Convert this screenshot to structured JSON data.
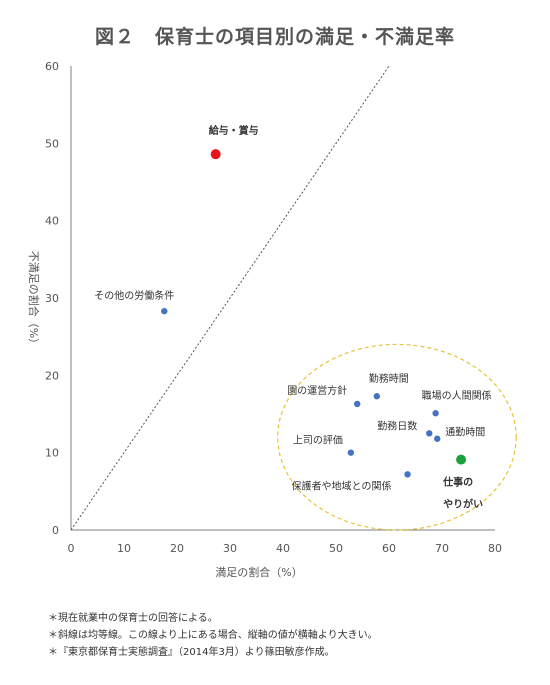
{
  "title": "図２　保育士の項目別の満足・不満足率",
  "chart_data": {
    "type": "scatter",
    "xlabel": "満足の割合（%）",
    "ylabel": "不満足の割合（%）",
    "xlim": [
      0,
      80
    ],
    "ylim": [
      0,
      60
    ],
    "x_ticks": [
      0,
      10,
      20,
      30,
      40,
      50,
      60,
      70,
      80
    ],
    "y_ticks": [
      0,
      10,
      20,
      30,
      40,
      50,
      60
    ],
    "grid": false,
    "reference_line": {
      "style": "dotted",
      "from": [
        0,
        0
      ],
      "to": [
        60,
        60
      ]
    },
    "points": [
      {
        "label": "給与・賞与",
        "x": 27.3,
        "y": 48.6,
        "color": "#e8141b",
        "emphasis": true
      },
      {
        "label": "その他の労働条件",
        "x": 17.6,
        "y": 28.3,
        "color": "#4472c4"
      },
      {
        "label": "園の運営方針",
        "x": 54.0,
        "y": 16.3,
        "color": "#4472c4"
      },
      {
        "label": "勤務時間",
        "x": 57.7,
        "y": 17.3,
        "color": "#4472c4"
      },
      {
        "label": "職場の人間関係",
        "x": 68.8,
        "y": 15.1,
        "color": "#4472c4"
      },
      {
        "label": "勤務日数",
        "x": 67.6,
        "y": 12.5,
        "color": "#4472c4"
      },
      {
        "label": "通勤時間",
        "x": 69.1,
        "y": 11.8,
        "color": "#4472c4"
      },
      {
        "label": "上司の評価",
        "x": 52.8,
        "y": 10.0,
        "color": "#4472c4"
      },
      {
        "label": "保護者や地域との関係",
        "x": 63.5,
        "y": 7.2,
        "color": "#4472c4"
      },
      {
        "label": "仕事の\nやりがい",
        "x": 73.6,
        "y": 9.1,
        "color": "#1aa33a",
        "emphasis": true
      }
    ],
    "highlight_ellipse": {
      "style": "dashed",
      "color": "#e8c23a",
      "cx": 61.5,
      "cy": 12.0,
      "rx": 22.5,
      "ry": 12.0
    }
  },
  "notes": [
    "＊現在就業中の保育士の回答による。",
    "＊斜線は均等線。この線より上にある場合、縦軸の値が横軸より大きい。",
    "＊『東京都保育士実態調査』（2014年3月）より篠田敏彦作成。"
  ]
}
